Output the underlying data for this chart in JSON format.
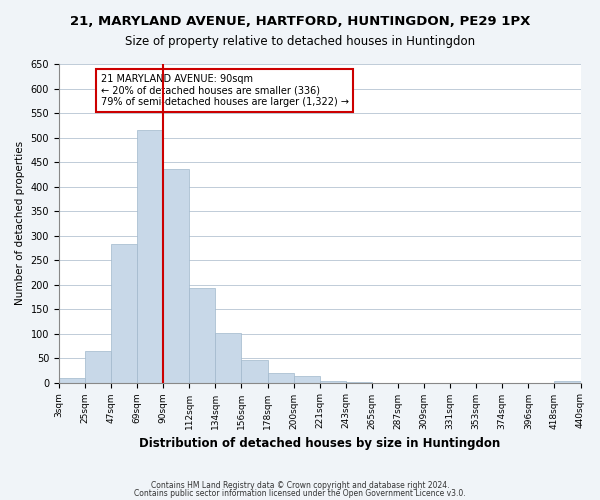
{
  "title": "21, MARYLAND AVENUE, HARTFORD, HUNTINGDON, PE29 1PX",
  "subtitle": "Size of property relative to detached houses in Huntingdon",
  "xlabel": "Distribution of detached houses by size in Huntingdon",
  "ylabel": "Number of detached properties",
  "bin_labels": [
    "3sqm",
    "25sqm",
    "47sqm",
    "69sqm",
    "90sqm",
    "112sqm",
    "134sqm",
    "156sqm",
    "178sqm",
    "200sqm",
    "221sqm",
    "243sqm",
    "265sqm",
    "287sqm",
    "309sqm",
    "331sqm",
    "353sqm",
    "374sqm",
    "396sqm",
    "418sqm",
    "440sqm"
  ],
  "bar_heights": [
    10,
    65,
    283,
    515,
    435,
    193,
    102,
    47,
    20,
    13,
    3,
    1,
    0,
    0,
    0,
    0,
    0,
    0,
    0,
    3
  ],
  "bar_color": "#c8d8e8",
  "bar_edge_color": "#a0b8cc",
  "vline_x": 4,
  "vline_color": "#cc0000",
  "ylim": [
    0,
    650
  ],
  "yticks": [
    0,
    50,
    100,
    150,
    200,
    250,
    300,
    350,
    400,
    450,
    500,
    550,
    600,
    650
  ],
  "annotation_text": "21 MARYLAND AVENUE: 90sqm\n← 20% of detached houses are smaller (336)\n79% of semi-detached houses are larger (1,322) →",
  "annotation_box_color": "#ffffff",
  "annotation_box_edge": "#cc0000",
  "footer1": "Contains HM Land Registry data © Crown copyright and database right 2024.",
  "footer2": "Contains public sector information licensed under the Open Government Licence v3.0.",
  "bg_color": "#f0f4f8",
  "plot_bg_color": "#ffffff",
  "grid_color": "#c0ccd8"
}
